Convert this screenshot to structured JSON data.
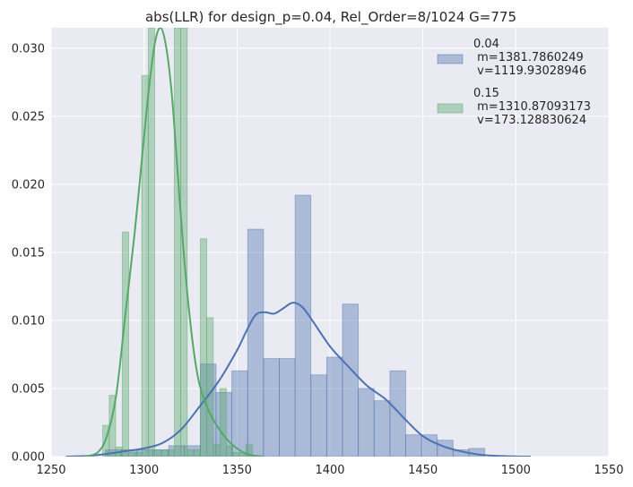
{
  "chart_data": {
    "type": "histogram",
    "title": "abs(LLR) for design_p=0.04, Rel_Order=8/1024 G=775",
    "xlabel": "",
    "ylabel": "",
    "xlim": [
      1250,
      1550
    ],
    "ylim": [
      0,
      0.0315
    ],
    "xticks": [
      1250,
      1300,
      1350,
      1400,
      1450,
      1500,
      1550
    ],
    "xtick_labels": [
      "1250",
      "1300",
      "1350",
      "1400",
      "1450",
      "1500",
      "1550"
    ],
    "yticks": [
      0.0,
      0.005,
      0.01,
      0.015,
      0.02,
      0.025,
      0.03
    ],
    "ytick_labels": [
      "0.000",
      "0.005",
      "0.010",
      "0.015",
      "0.020",
      "0.025",
      "0.030"
    ],
    "grid": true,
    "background": "#eaeaf2",
    "legend_position": "top-right",
    "series": [
      {
        "name": "0.04",
        "legend_lines": [
          "0.04",
          " m=1381.7860249",
          " v=1119.93028946"
        ],
        "color": "#4c72b0",
        "bar_width": 8.5,
        "bins": [
          {
            "x": 1283.5,
            "y": 0.0005
          },
          {
            "x": 1292.0,
            "y": 0.0005
          },
          {
            "x": 1300.5,
            "y": 0.0005
          },
          {
            "x": 1309.0,
            "y": 0.0005
          },
          {
            "x": 1317.5,
            "y": 0.0008
          },
          {
            "x": 1326.0,
            "y": 0.0008
          },
          {
            "x": 1334.5,
            "y": 0.0068
          },
          {
            "x": 1343.0,
            "y": 0.0047
          },
          {
            "x": 1351.5,
            "y": 0.0063
          },
          {
            "x": 1360.0,
            "y": 0.0167
          },
          {
            "x": 1368.5,
            "y": 0.0072
          },
          {
            "x": 1377.0,
            "y": 0.0072
          },
          {
            "x": 1385.5,
            "y": 0.0192
          },
          {
            "x": 1394.0,
            "y": 0.006
          },
          {
            "x": 1402.5,
            "y": 0.0073
          },
          {
            "x": 1411.0,
            "y": 0.0112
          },
          {
            "x": 1419.5,
            "y": 0.005
          },
          {
            "x": 1428.0,
            "y": 0.0041
          },
          {
            "x": 1436.5,
            "y": 0.0063
          },
          {
            "x": 1445.0,
            "y": 0.0016
          },
          {
            "x": 1453.5,
            "y": 0.0016
          },
          {
            "x": 1462.0,
            "y": 0.0012
          },
          {
            "x": 1470.5,
            "y": 0.0005
          },
          {
            "x": 1479.0,
            "y": 0.0006
          }
        ],
        "kde": {
          "x": [
            1258,
            1270,
            1280,
            1290,
            1300,
            1310,
            1320,
            1330,
            1340,
            1350,
            1355,
            1360,
            1365,
            1370,
            1375,
            1380,
            1385,
            1390,
            1400,
            1410,
            1420,
            1430,
            1440,
            1450,
            1460,
            1470,
            1480,
            1490,
            1500,
            1508
          ],
          "y": [
            0.0,
            5e-05,
            0.0002,
            0.0004,
            0.0006,
            0.001,
            0.002,
            0.0037,
            0.0055,
            0.0078,
            0.0092,
            0.0104,
            0.0106,
            0.0105,
            0.0109,
            0.0113,
            0.011,
            0.0101,
            0.0081,
            0.0066,
            0.0052,
            0.0042,
            0.0028,
            0.0015,
            0.0008,
            0.0004,
            0.00015,
            5e-05,
            1e-05,
            0.0
          ]
        }
      },
      {
        "name": "0.15",
        "legend_lines": [
          "0.15",
          " m=1310.87093173",
          " v=173.128830624"
        ],
        "color": "#55a868",
        "bar_width": 3.5,
        "bins": [
          {
            "x": 1279.5,
            "y": 0.0023
          },
          {
            "x": 1283.0,
            "y": 0.0045
          },
          {
            "x": 1286.5,
            "y": 0.0007
          },
          {
            "x": 1290.0,
            "y": 0.0165
          },
          {
            "x": 1293.5,
            "y": 0.0003
          },
          {
            "x": 1297.0,
            "y": 0.0003
          },
          {
            "x": 1300.5,
            "y": 0.028
          },
          {
            "x": 1304.0,
            "y": 0.0315
          },
          {
            "x": 1307.5,
            "y": 0.0005
          },
          {
            "x": 1311.0,
            "y": 0.0005
          },
          {
            "x": 1314.5,
            "y": 0.0005
          },
          {
            "x": 1318.0,
            "y": 0.0315
          },
          {
            "x": 1321.5,
            "y": 0.0315
          },
          {
            "x": 1325.0,
            "y": 0.0005
          },
          {
            "x": 1328.5,
            "y": 0.0005
          },
          {
            "x": 1332.0,
            "y": 0.016
          },
          {
            "x": 1335.5,
            "y": 0.0102
          },
          {
            "x": 1339.0,
            "y": 0.0009
          },
          {
            "x": 1342.5,
            "y": 0.005
          },
          {
            "x": 1346.0,
            "y": 0.0008
          },
          {
            "x": 1349.5,
            "y": 0.0003
          },
          {
            "x": 1353.0,
            "y": 0.0003
          },
          {
            "x": 1356.5,
            "y": 0.0009
          }
        ],
        "kde": {
          "x": [
            1268,
            1275,
            1280,
            1285,
            1290,
            1295,
            1300,
            1303,
            1306,
            1309,
            1312,
            1315,
            1318,
            1321,
            1324,
            1327,
            1330,
            1335,
            1340,
            1345,
            1350,
            1355,
            1360,
            1364
          ],
          "y": [
            0.0,
            0.0003,
            0.0015,
            0.0045,
            0.0105,
            0.0165,
            0.0235,
            0.0275,
            0.0305,
            0.0315,
            0.03,
            0.0265,
            0.021,
            0.0155,
            0.011,
            0.0075,
            0.0052,
            0.0033,
            0.0021,
            0.0012,
            0.0006,
            0.0002,
            5e-05,
            0.0
          ]
        }
      }
    ]
  }
}
